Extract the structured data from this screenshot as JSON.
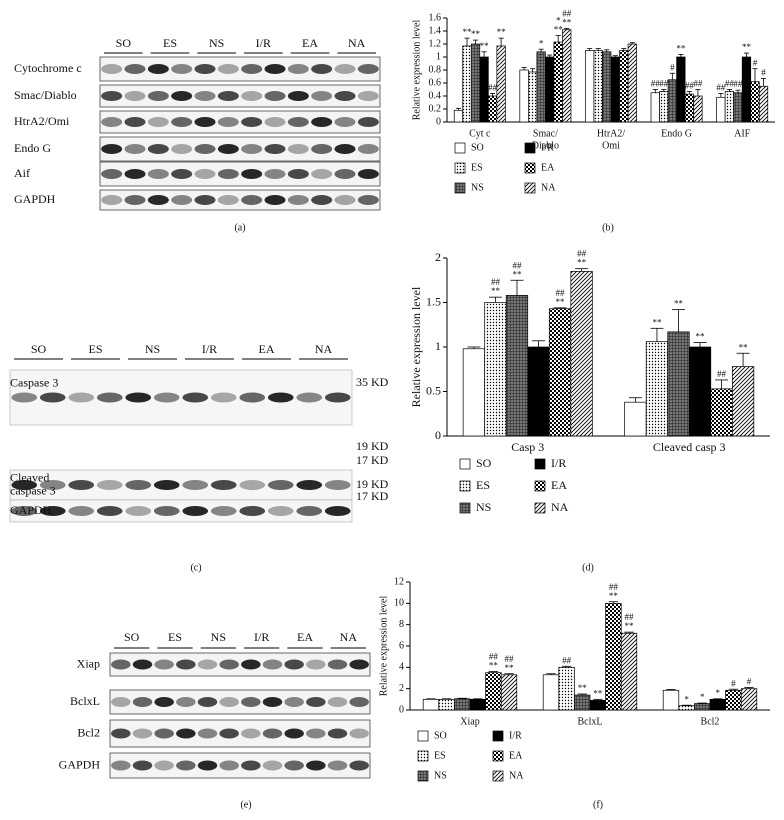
{
  "panel_labels": [
    "(a)",
    "(b)",
    "(c)",
    "(d)",
    "(e)",
    "(f)"
  ],
  "blots": [
    {
      "groups": [
        "SO",
        "ES",
        "NS",
        "I/R",
        "EA",
        "NA"
      ],
      "rows": [
        {
          "name": [
            "Cytochrome c"
          ]
        },
        {
          "name": [
            "Smac/Diablo"
          ]
        },
        {
          "name": [
            "HtrA2/Omi"
          ]
        },
        {
          "name": [
            "Endo G"
          ]
        },
        {
          "name": [
            "Aif"
          ]
        },
        {
          "name": [
            "GAPDH"
          ]
        }
      ]
    },
    {
      "groups": [
        "SO",
        "ES",
        "NS",
        "I/R",
        "EA",
        "NA"
      ],
      "rows": [
        {
          "name": [
            "Caspase 3"
          ]
        },
        {
          "name": [
            "Cleaved",
            "caspase 3"
          ]
        },
        {
          "name": [
            "GAPDH"
          ]
        }
      ],
      "markers": [
        "35 KD",
        "19 KD",
        "17 KD",
        "19 KD",
        "17 KD"
      ]
    },
    {
      "groups": [
        "SO",
        "ES",
        "NS",
        "I/R",
        "EA",
        "NA"
      ],
      "rows": [
        {
          "name": [
            "Xiap"
          ]
        },
        {
          "name": [
            "BclxL"
          ]
        },
        {
          "name": [
            "Bcl2"
          ]
        },
        {
          "name": [
            "GAPDH"
          ]
        }
      ]
    }
  ],
  "chart_data": [
    {
      "type": "bar",
      "y_label": "Relative expression level",
      "categories": [
        [
          "Cyt c"
        ],
        [
          "Smac/",
          "Diablo"
        ],
        [
          "HtrA2/",
          "Omi"
        ],
        [
          "Endo G"
        ],
        [
          "AIF"
        ]
      ],
      "ylim": [
        0,
        1.6
      ],
      "yticks": [
        0,
        0.2,
        0.4,
        0.6,
        0.8,
        1,
        1.2,
        1.4,
        1.6
      ],
      "legend": "bottom",
      "series": [
        {
          "name": "SO",
          "color": "#ffffff",
          "pattern": "none",
          "values": [
            0.18,
            0.8,
            1.1,
            0.45,
            0.38
          ],
          "errors": [
            0.03,
            0.04,
            0.03,
            0.05,
            0.06
          ],
          "annotations": [
            null,
            null,
            null,
            [
              "##"
            ],
            [
              "##"
            ]
          ]
        },
        {
          "name": "ES",
          "color": "#000000",
          "pattern": "dots",
          "values": [
            1.17,
            0.77,
            1.1,
            0.47,
            0.47
          ],
          "errors": [
            0.12,
            0.05,
            0.03,
            0.03,
            0.03
          ],
          "annotations": [
            [
              "**"
            ],
            null,
            null,
            [
              "##"
            ],
            [
              "##"
            ]
          ]
        },
        {
          "name": "NS",
          "color": "#000000",
          "pattern": "grid",
          "values": [
            1.2,
            1.08,
            1.08,
            0.65,
            0.45
          ],
          "errors": [
            0.06,
            0.04,
            0.03,
            0.1,
            0.04
          ],
          "annotations": [
            [
              "**"
            ],
            [
              "*"
            ],
            null,
            [
              "#"
            ],
            [
              "##"
            ]
          ]
        },
        {
          "name": "I/R",
          "color": "#000000",
          "pattern": "solid",
          "values": [
            1.0,
            1.0,
            1.0,
            1.0,
            1.0
          ],
          "errors": [
            0.08,
            0.03,
            0.02,
            0.04,
            0.06
          ],
          "annotations": [
            [
              "**"
            ],
            null,
            null,
            [
              "**"
            ],
            [
              "**"
            ]
          ]
        },
        {
          "name": "EA",
          "color": "#000000",
          "pattern": "checker",
          "values": [
            0.4,
            1.23,
            1.1,
            0.43,
            0.62
          ],
          "errors": [
            0.04,
            0.1,
            0.03,
            0.04,
            0.2
          ],
          "annotations": [
            [
              "##"
            ],
            [
              "*",
              "**"
            ],
            null,
            [
              "##"
            ],
            [
              "#"
            ]
          ]
        },
        {
          "name": "NA",
          "color": "#000000",
          "pattern": "diagonal",
          "values": [
            1.17,
            1.42,
            1.2,
            0.4,
            0.55
          ],
          "errors": [
            0.12,
            0.02,
            0.02,
            0.1,
            0.12
          ],
          "annotations": [
            [
              "**"
            ],
            [
              "##",
              "**"
            ],
            null,
            [
              "##"
            ],
            [
              "#"
            ]
          ]
        }
      ]
    },
    {
      "type": "bar",
      "y_label": "Relative expression level",
      "categories": [
        [
          "Casp 3"
        ],
        [
          "Cleaved casp 3"
        ]
      ],
      "ylim": [
        0,
        2
      ],
      "yticks": [
        0,
        0.5,
        1,
        1.5,
        2
      ],
      "legend": "bottom",
      "series": [
        {
          "name": "SO",
          "color": "#ffffff",
          "pattern": "none",
          "values": [
            0.98,
            0.38
          ],
          "errors": [
            0.02,
            0.05
          ],
          "annotations": [
            null,
            null
          ]
        },
        {
          "name": "ES",
          "color": "#000000",
          "pattern": "dots",
          "values": [
            1.5,
            1.06
          ],
          "errors": [
            0.06,
            0.15
          ],
          "annotations": [
            [
              "##",
              "**"
            ],
            [
              "**"
            ]
          ]
        },
        {
          "name": "NS",
          "color": "#000000",
          "pattern": "grid",
          "values": [
            1.58,
            1.17
          ],
          "errors": [
            0.17,
            0.25
          ],
          "annotations": [
            [
              "##",
              "**"
            ],
            [
              "**"
            ]
          ]
        },
        {
          "name": "I/R",
          "color": "#000000",
          "pattern": "solid",
          "values": [
            1.0,
            1.0
          ],
          "errors": [
            0.07,
            0.05
          ],
          "annotations": [
            null,
            [
              "**"
            ]
          ]
        },
        {
          "name": "EA",
          "color": "#000000",
          "pattern": "checker",
          "values": [
            1.43,
            0.53
          ],
          "errors": [
            0.01,
            0.1
          ],
          "annotations": [
            [
              "##",
              "**"
            ],
            [
              "##"
            ]
          ]
        },
        {
          "name": "NA",
          "color": "#000000",
          "pattern": "diagonal",
          "values": [
            1.85,
            0.78
          ],
          "errors": [
            0.03,
            0.15
          ],
          "annotations": [
            [
              "##",
              "**"
            ],
            [
              "**"
            ]
          ]
        }
      ]
    },
    {
      "type": "bar",
      "y_label": "Relative expression level",
      "categories": [
        [
          "Xiap"
        ],
        [
          "BclxL"
        ],
        [
          "Bcl2"
        ]
      ],
      "ylim": [
        0,
        12
      ],
      "yticks": [
        0,
        2,
        4,
        6,
        8,
        10,
        12
      ],
      "legend": "bottom",
      "series": [
        {
          "name": "SO",
          "color": "#ffffff",
          "pattern": "none",
          "values": [
            1.0,
            3.3,
            1.85
          ],
          "errors": [
            0.05,
            0.1,
            0.08
          ],
          "annotations": [
            null,
            null,
            null
          ]
        },
        {
          "name": "ES",
          "color": "#000000",
          "pattern": "dots",
          "values": [
            1.0,
            4.0,
            0.4
          ],
          "errors": [
            0.05,
            0.1,
            0.05
          ],
          "annotations": [
            null,
            [
              "##"
            ],
            [
              "*"
            ]
          ]
        },
        {
          "name": "NS",
          "color": "#000000",
          "pattern": "grid",
          "values": [
            1.05,
            1.4,
            0.6
          ],
          "errors": [
            0.05,
            0.1,
            0.05
          ],
          "annotations": [
            null,
            [
              "**"
            ],
            [
              "*"
            ]
          ]
        },
        {
          "name": "I/R",
          "color": "#000000",
          "pattern": "solid",
          "values": [
            1.0,
            0.9,
            1.0
          ],
          "errors": [
            0.05,
            0.1,
            0.05
          ],
          "annotations": [
            null,
            [
              "**"
            ],
            [
              "*"
            ]
          ]
        },
        {
          "name": "EA",
          "color": "#000000",
          "pattern": "checker",
          "values": [
            3.5,
            10.0,
            1.85
          ],
          "errors": [
            0.1,
            0.15,
            0.1
          ],
          "annotations": [
            [
              "##",
              "**"
            ],
            [
              "##",
              "**"
            ],
            [
              "#"
            ]
          ]
        },
        {
          "name": "NA",
          "color": "#000000",
          "pattern": "diagonal",
          "values": [
            3.3,
            7.2,
            2.0
          ],
          "errors": [
            0.1,
            0.1,
            0.1
          ],
          "annotations": [
            [
              "##",
              "**"
            ],
            [
              "##",
              "**"
            ],
            [
              "#"
            ]
          ]
        }
      ]
    }
  ]
}
